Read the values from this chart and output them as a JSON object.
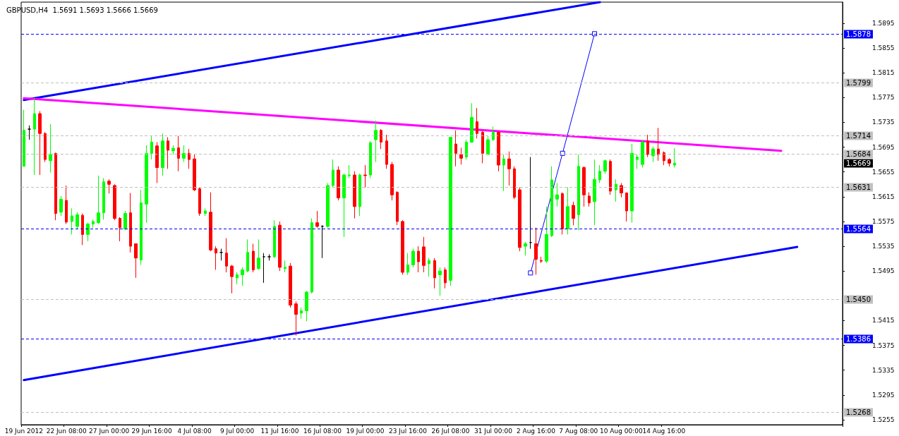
{
  "chart_data": {
    "type": "candlestick",
    "title": "GBPUSD,H4  1.5691 1.5693 1.5666 1.5669",
    "categories": [
      "19 Jun 2012",
      null,
      null,
      null,
      null,
      null,
      null,
      null,
      "22 Jun 08:00",
      null,
      null,
      null,
      null,
      null,
      null,
      null,
      "27 Jun 00:00",
      null,
      null,
      null,
      null,
      null,
      null,
      null,
      "29 Jun 16:00",
      null,
      null,
      null,
      null,
      null,
      null,
      null,
      "4 Jul 08:00",
      null,
      null,
      null,
      null,
      null,
      null,
      null,
      "9 Jul 00:00",
      null,
      null,
      null,
      null,
      null,
      null,
      null,
      "11 Jul 16:00",
      null,
      null,
      null,
      null,
      null,
      null,
      null,
      "16 Jul 08:00",
      null,
      null,
      null,
      null,
      null,
      null,
      null,
      "19 Jul 00:00",
      null,
      null,
      null,
      null,
      null,
      null,
      null,
      "23 Jul 16:00",
      null,
      null,
      null,
      null,
      null,
      null,
      null,
      "26 Jul 08:00",
      null,
      null,
      null,
      null,
      null,
      null,
      null,
      "31 Jul 00:00",
      null,
      null,
      null,
      null,
      null,
      null,
      null,
      "2 Aug 16:00",
      null,
      null,
      null,
      null,
      null,
      null,
      null,
      "7 Aug 08:00",
      null,
      null,
      null,
      null,
      null,
      null,
      null,
      "10 Aug 00:00",
      null,
      null,
      null,
      null,
      null,
      null,
      null,
      "14 Aug 16:00",
      null,
      null,
      null,
      null,
      null,
      null,
      null,
      null,
      null,
      null,
      null,
      null,
      null,
      null,
      null,
      null,
      null,
      null,
      null,
      null,
      null,
      null,
      null,
      null,
      null,
      null,
      null,
      null,
      null,
      null,
      null,
      null,
      null
    ],
    "ohlc": [
      [
        1.5664,
        1.5755,
        1.5664,
        1.5722
      ],
      [
        1.5724,
        1.573,
        1.5707,
        1.5724
      ],
      [
        1.5724,
        1.5774,
        1.565,
        1.5749
      ],
      [
        1.5749,
        1.5753,
        1.565,
        1.5717
      ],
      [
        1.5717,
        1.5719,
        1.5671,
        1.5675
      ],
      [
        1.5673,
        1.5732,
        1.5654,
        1.5683
      ],
      [
        1.5685,
        1.5686,
        1.5577,
        1.5588
      ],
      [
        1.559,
        1.5616,
        1.5584,
        1.5611
      ],
      [
        1.5609,
        1.5633,
        1.5571,
        1.5574
      ],
      [
        1.5575,
        1.5596,
        1.5554,
        1.5584
      ],
      [
        1.5567,
        1.559,
        1.5563,
        1.5586
      ],
      [
        1.5585,
        1.5588,
        1.5537,
        1.5554
      ],
      [
        1.5554,
        1.5573,
        1.5543,
        1.5571
      ],
      [
        1.5571,
        1.5578,
        1.5565,
        1.5575
      ],
      [
        1.5573,
        1.5649,
        1.5571,
        1.5589
      ],
      [
        1.5589,
        1.5645,
        1.5578,
        1.5639
      ],
      [
        1.564,
        1.5643,
        1.562,
        1.5635
      ],
      [
        1.5633,
        1.5635,
        1.5577,
        1.558
      ],
      [
        1.558,
        1.5582,
        1.5543,
        1.5565
      ],
      [
        1.5563,
        1.5592,
        1.5561,
        1.5588
      ],
      [
        1.5589,
        1.5621,
        1.5525,
        1.5535
      ],
      [
        1.5539,
        1.5539,
        1.5484,
        1.5516
      ],
      [
        1.5513,
        1.5626,
        1.5505,
        1.5605
      ],
      [
        1.5603,
        1.5698,
        1.5573,
        1.5685
      ],
      [
        1.5685,
        1.5713,
        1.5675,
        1.5703
      ],
      [
        1.5697,
        1.5703,
        1.5637,
        1.5662
      ],
      [
        1.5662,
        1.5717,
        1.5649,
        1.5705
      ],
      [
        1.5705,
        1.5711,
        1.566,
        1.569
      ],
      [
        1.5689,
        1.5698,
        1.5683,
        1.5693
      ],
      [
        1.5694,
        1.5713,
        1.5656,
        1.5677
      ],
      [
        1.5677,
        1.5698,
        1.5671,
        1.5685
      ],
      [
        1.5685,
        1.5692,
        1.566,
        1.5675
      ],
      [
        1.5676,
        1.5683,
        1.5624,
        1.5626
      ],
      [
        1.5628,
        1.563,
        1.5584,
        1.5588
      ],
      [
        1.5588,
        1.5596,
        1.5584,
        1.5592
      ],
      [
        1.559,
        1.5622,
        1.5527,
        1.5529
      ],
      [
        1.5531,
        1.5535,
        1.5497,
        1.5524
      ],
      [
        1.5525,
        1.5531,
        1.5512,
        1.5525
      ],
      [
        1.5524,
        1.5548,
        1.5493,
        1.5503
      ],
      [
        1.5503,
        1.5505,
        1.5459,
        1.5486
      ],
      [
        1.5484,
        1.5493,
        1.5474,
        1.5489
      ],
      [
        1.5489,
        1.5501,
        1.5471,
        1.5497
      ],
      [
        1.5495,
        1.5546,
        1.5493,
        1.5525
      ],
      [
        1.5527,
        1.5539,
        1.5493,
        1.5497
      ],
      [
        1.5499,
        1.5546,
        1.5497,
        1.5516
      ],
      [
        1.5518,
        1.5524,
        1.5476,
        1.5518
      ],
      [
        1.5518,
        1.5522,
        1.5512,
        1.5518
      ],
      [
        1.5518,
        1.5577,
        1.5516,
        1.5567
      ],
      [
        1.5569,
        1.5575,
        1.5495,
        1.5501
      ],
      [
        1.5499,
        1.5512,
        1.5493,
        1.5501
      ],
      [
        1.5503,
        1.5508,
        1.5436,
        1.544
      ],
      [
        1.5442,
        1.5446,
        1.5391,
        1.5425
      ],
      [
        1.5427,
        1.5436,
        1.5418,
        1.5431
      ],
      [
        1.5431,
        1.5463,
        1.5414,
        1.5461
      ],
      [
        1.5461,
        1.558,
        1.5459,
        1.5573
      ],
      [
        1.5573,
        1.5592,
        1.5565,
        1.5567
      ],
      [
        1.5567,
        1.5569,
        1.5516,
        1.5567
      ],
      [
        1.5567,
        1.5637,
        1.5565,
        1.5633
      ],
      [
        1.5633,
        1.5675,
        1.563,
        1.5658
      ],
      [
        1.5658,
        1.5664,
        1.5609,
        1.5613
      ],
      [
        1.5613,
        1.5652,
        1.555,
        1.565
      ],
      [
        1.5649,
        1.5666,
        1.5645,
        1.565
      ],
      [
        1.565,
        1.5656,
        1.558,
        1.5599
      ],
      [
        1.5599,
        1.5652,
        1.5584,
        1.565
      ],
      [
        1.565,
        1.5666,
        1.563,
        1.5649
      ],
      [
        1.565,
        1.5705,
        1.5645,
        1.5702
      ],
      [
        1.5707,
        1.5738,
        1.5671,
        1.5722
      ],
      [
        1.5722,
        1.5724,
        1.5692,
        1.5703
      ],
      [
        1.5705,
        1.5715,
        1.566,
        1.5667
      ],
      [
        1.5667,
        1.5671,
        1.5609,
        1.5618
      ],
      [
        1.5622,
        1.5624,
        1.5569,
        1.5575
      ],
      [
        1.5575,
        1.5577,
        1.5489,
        1.5493
      ],
      [
        1.5493,
        1.5524,
        1.5489,
        1.5505
      ],
      [
        1.5505,
        1.5531,
        1.5501,
        1.5527
      ],
      [
        1.5527,
        1.5535,
        1.5493,
        1.551
      ],
      [
        1.5534,
        1.555,
        1.5493,
        1.5504
      ],
      [
        1.5507,
        1.5516,
        1.5486,
        1.5512
      ],
      [
        1.5512,
        1.5516,
        1.5467,
        1.5484
      ],
      [
        1.5489,
        1.5501,
        1.5455,
        1.5495
      ],
      [
        1.5497,
        1.5501,
        1.5467,
        1.5476
      ],
      [
        1.548,
        1.5711,
        1.5471,
        1.5711
      ],
      [
        1.57,
        1.5722,
        1.5664,
        1.5685
      ],
      [
        1.5683,
        1.5694,
        1.5667,
        1.5677
      ],
      [
        1.5679,
        1.5707,
        1.5675,
        1.5703
      ],
      [
        1.5703,
        1.5766,
        1.5702,
        1.5743
      ],
      [
        1.5736,
        1.5758,
        1.5709,
        1.5717
      ],
      [
        1.5719,
        1.5721,
        1.5669,
        1.5685
      ],
      [
        1.5683,
        1.5713,
        1.5683,
        1.5707
      ],
      [
        1.5707,
        1.5728,
        1.5705,
        1.5719
      ],
      [
        1.5719,
        1.5721,
        1.5656,
        1.5666
      ],
      [
        1.5666,
        1.5683,
        1.5624,
        1.5676
      ],
      [
        1.5676,
        1.5688,
        1.5633,
        1.566
      ],
      [
        1.566,
        1.5664,
        1.5611,
        1.5614
      ],
      [
        1.5626,
        1.563,
        1.5527,
        1.5533
      ],
      [
        1.5535,
        1.5542,
        1.552,
        1.5539
      ],
      [
        1.5541,
        1.5679,
        1.5531,
        1.5541
      ],
      [
        1.5539,
        1.5565,
        1.5489,
        1.5514
      ],
      [
        1.5512,
        1.5518,
        1.5508,
        1.5511
      ],
      [
        1.5511,
        1.5599,
        1.5508,
        1.5554
      ],
      [
        1.5552,
        1.5664,
        1.555,
        1.5642
      ],
      [
        1.5611,
        1.5637,
        1.5599,
        1.5618
      ],
      [
        1.562,
        1.5622,
        1.5554,
        1.5563
      ],
      [
        1.5563,
        1.563,
        1.5554,
        1.5599
      ],
      [
        1.5601,
        1.5607,
        1.5569,
        1.558
      ],
      [
        1.5586,
        1.5683,
        1.5561,
        1.5664
      ],
      [
        1.5662,
        1.5664,
        1.5599,
        1.5618
      ],
      [
        1.5616,
        1.5622,
        1.5599,
        1.5605
      ],
      [
        1.5607,
        1.5675,
        1.5569,
        1.5643
      ],
      [
        1.5642,
        1.5666,
        1.5637,
        1.5656
      ],
      [
        1.5656,
        1.5675,
        1.5652,
        1.5673
      ],
      [
        1.5672,
        1.5675,
        1.5618,
        1.5624
      ],
      [
        1.5626,
        1.5643,
        1.5607,
        1.5635
      ],
      [
        1.5633,
        1.5637,
        1.5614,
        1.5621
      ],
      [
        1.5621,
        1.5622,
        1.5575,
        1.5592
      ],
      [
        1.5592,
        1.57,
        1.5573,
        1.5685
      ],
      [
        1.5675,
        1.5683,
        1.566,
        1.5679
      ],
      [
        1.5667,
        1.5707,
        1.5662,
        1.5703
      ],
      [
        1.5705,
        1.5715,
        1.5679,
        1.5683
      ],
      [
        1.5681,
        1.5696,
        1.5671,
        1.5692
      ],
      [
        1.5692,
        1.5726,
        1.5673,
        1.5683
      ],
      [
        1.5686,
        1.5688,
        1.5666,
        1.5673
      ],
      [
        1.5675,
        1.5677,
        1.5664,
        1.5669
      ],
      [
        1.5666,
        1.5693,
        1.5662,
        1.5669
      ],
      null,
      null,
      null,
      null,
      null,
      null,
      null,
      null,
      null,
      null,
      null,
      null,
      null,
      null,
      null,
      null,
      null,
      null,
      null,
      null,
      null,
      null,
      null,
      null,
      null,
      null,
      null,
      null,
      null,
      null,
      null
    ],
    "colors": [
      "#00ff00",
      "#000000",
      "#00ff00",
      "#ff0000",
      "#ff0000",
      "#00ff00",
      "#ff0000",
      "#00ff00",
      "#ff0000",
      "#00ff00",
      "#00ff00",
      "#ff0000",
      "#00ff00",
      "#00ff00",
      "#00ff00",
      "#00ff00",
      "#ff0000",
      "#ff0000",
      "#ff0000",
      "#00ff00",
      "#ff0000",
      "#ff0000",
      "#00ff00",
      "#00ff00",
      "#00ff00",
      "#ff0000",
      "#00ff00",
      "#ff0000",
      "#00ff00",
      "#ff0000",
      "#00ff00",
      "#ff0000",
      "#ff0000",
      "#ff0000",
      "#00ff00",
      "#ff0000",
      "#ff0000",
      "#000000",
      "#ff0000",
      "#ff0000",
      "#00ff00",
      "#00ff00",
      "#00ff00",
      "#ff0000",
      "#00ff00",
      "#000000",
      "#000000",
      "#00ff00",
      "#ff0000",
      "#00ff00",
      "#ff0000",
      "#ff0000",
      "#00ff00",
      "#00ff00",
      "#00ff00",
      "#ff0000",
      "#000000",
      "#00ff00",
      "#00ff00",
      "#ff0000",
      "#00ff00",
      "#00ff00",
      "#ff0000",
      "#00ff00",
      "#ff0000",
      "#00ff00",
      "#00ff00",
      "#ff0000",
      "#ff0000",
      "#ff0000",
      "#ff0000",
      "#ff0000",
      "#00ff00",
      "#00ff00",
      "#ff0000",
      "#ff0000",
      "#00ff00",
      "#ff0000",
      "#00ff00",
      "#ff0000",
      "#00ff00",
      "#ff0000",
      "#ff0000",
      "#00ff00",
      "#00ff00",
      "#ff0000",
      "#ff0000",
      "#00ff00",
      "#00ff00",
      "#ff0000",
      "#00ff00",
      "#ff0000",
      "#ff0000",
      "#ff0000",
      "#00ff00",
      "#000000",
      "#ff0000",
      "#ff0000",
      "#00ff00",
      "#00ff00",
      "#00ff00",
      "#ff0000",
      "#00ff00",
      "#ff0000",
      "#00ff00",
      "#ff0000",
      "#ff0000",
      "#00ff00",
      "#00ff00",
      "#00ff00",
      "#ff0000",
      "#00ff00",
      "#ff0000",
      "#ff0000",
      "#00ff00",
      "#00ff00",
      "#00ff00",
      "#ff0000",
      "#00ff00",
      "#ff0000",
      "#ff0000",
      "#ff0000",
      "#00ff00",
      null,
      null,
      null,
      null,
      null,
      null,
      null,
      null,
      null,
      null,
      null,
      null,
      null,
      null,
      null,
      null,
      null,
      null,
      null,
      null,
      null,
      null,
      null,
      null,
      null,
      null,
      null,
      null,
      null,
      null,
      null
    ],
    "series": [
      {
        "type": "line",
        "color": "#0000ff",
        "values": [
          1.5771,
          null,
          null,
          null,
          null,
          null,
          null,
          null,
          null,
          null,
          null,
          null,
          null,
          null,
          null,
          null,
          null,
          null,
          null,
          null,
          null,
          null,
          null,
          null,
          null,
          null,
          null,
          null,
          null,
          null,
          null,
          null,
          null,
          null,
          null,
          null,
          null,
          null,
          null,
          null,
          null,
          null,
          null,
          null,
          null,
          null,
          null,
          null,
          null,
          null,
          null,
          null,
          null,
          null,
          null,
          null,
          null,
          null,
          null,
          null,
          null,
          null,
          null,
          null,
          null,
          null,
          null,
          null,
          null,
          null,
          null,
          null,
          null,
          null,
          null,
          null,
          null,
          null,
          null,
          null,
          null,
          null,
          null,
          null,
          null,
          null,
          null,
          null,
          null,
          null,
          null,
          null,
          null,
          null,
          null,
          null,
          null,
          null,
          null,
          null,
          null,
          null,
          null,
          null,
          null,
          null,
          null,
          null,
          1.5929,
          null,
          null,
          null,
          null,
          null,
          null,
          null,
          null,
          null,
          null,
          null,
          null,
          null,
          null,
          null,
          null,
          null,
          null,
          null,
          null,
          null,
          null,
          null,
          null,
          null,
          null,
          null,
          null,
          null,
          null,
          null,
          null,
          null,
          null,
          null,
          null,
          null,
          null,
          null,
          null,
          null,
          null,
          null,
          null,
          null
        ]
      },
      {
        "type": "line",
        "color": "#0000ff",
        "values": [
          1.5319,
          null,
          null,
          null,
          null,
          null,
          null,
          null,
          null,
          null,
          null,
          null,
          null,
          null,
          null,
          null,
          null,
          null,
          null,
          null,
          null,
          null,
          null,
          null,
          null,
          null,
          null,
          null,
          null,
          null,
          null,
          null,
          null,
          null,
          null,
          null,
          null,
          null,
          null,
          null,
          null,
          null,
          null,
          null,
          null,
          null,
          null,
          null,
          null,
          null,
          null,
          null,
          null,
          null,
          null,
          null,
          null,
          null,
          null,
          null,
          null,
          null,
          null,
          null,
          null,
          null,
          null,
          null,
          null,
          null,
          null,
          null,
          null,
          null,
          null,
          null,
          null,
          null,
          null,
          null,
          null,
          null,
          null,
          null,
          null,
          null,
          null,
          null,
          null,
          null,
          null,
          null,
          null,
          null,
          null,
          null,
          null,
          null,
          null,
          null,
          null,
          null,
          null,
          null,
          null,
          null,
          null,
          null,
          null,
          null,
          null,
          null,
          null,
          null,
          null,
          null,
          null,
          null,
          null,
          null,
          null,
          null,
          null,
          null,
          null,
          null,
          null,
          null,
          null,
          null,
          null,
          null,
          null,
          null,
          null,
          null,
          null,
          null,
          null,
          null,
          null,
          null,
          null,
          null,
          null,
          1.5534,
          null,
          null,
          null,
          null,
          null,
          null,
          null,
          null
        ]
      },
      {
        "type": "line",
        "color": "#ff00ff",
        "values": [
          1.5774,
          null,
          null,
          null,
          null,
          null,
          null,
          null,
          null,
          null,
          null,
          null,
          null,
          null,
          null,
          null,
          null,
          null,
          null,
          null,
          null,
          null,
          null,
          null,
          null,
          null,
          null,
          null,
          null,
          null,
          null,
          null,
          null,
          null,
          null,
          null,
          null,
          null,
          null,
          null,
          null,
          null,
          null,
          null,
          null,
          null,
          null,
          null,
          null,
          null,
          null,
          null,
          null,
          null,
          null,
          null,
          null,
          null,
          null,
          null,
          null,
          null,
          null,
          null,
          null,
          null,
          null,
          null,
          null,
          null,
          null,
          null,
          null,
          null,
          null,
          null,
          null,
          null,
          null,
          null,
          null,
          null,
          null,
          null,
          null,
          null,
          null,
          null,
          null,
          null,
          null,
          null,
          null,
          null,
          null,
          null,
          null,
          null,
          null,
          null,
          null,
          null,
          null,
          null,
          null,
          null,
          null,
          null,
          null,
          null,
          null,
          null,
          null,
          null,
          null,
          null,
          null,
          null,
          null,
          null,
          null,
          null,
          null,
          null,
          null,
          null,
          null,
          null,
          null,
          null,
          null,
          null,
          null,
          null,
          null,
          null,
          null,
          null,
          null,
          null,
          null,
          null,
          1.5689,
          null,
          null,
          null,
          null,
          null,
          null,
          null,
          null,
          null,
          null,
          null
        ]
      },
      {
        "type": "line",
        "color": "#0000ff",
        "marker": "square",
        "values": [
          null,
          null,
          null,
          null,
          null,
          null,
          null,
          null,
          null,
          null,
          null,
          null,
          null,
          null,
          null,
          null,
          null,
          null,
          null,
          null,
          null,
          null,
          null,
          null,
          null,
          null,
          null,
          null,
          null,
          null,
          null,
          null,
          null,
          null,
          null,
          null,
          null,
          null,
          null,
          null,
          null,
          null,
          null,
          null,
          null,
          null,
          null,
          null,
          null,
          null,
          null,
          null,
          null,
          null,
          null,
          null,
          null,
          null,
          null,
          null,
          null,
          null,
          null,
          null,
          null,
          null,
          null,
          null,
          null,
          null,
          null,
          null,
          null,
          null,
          null,
          null,
          null,
          null,
          null,
          null,
          null,
          null,
          null,
          null,
          null,
          null,
          null,
          null,
          null,
          null,
          null,
          null,
          null,
          null,
          null,
          1.5492,
          null,
          null,
          null,
          null,
          null,
          1.5685,
          null,
          null,
          null,
          null,
          null,
          1.5878,
          null,
          null,
          null,
          null,
          null,
          null,
          null,
          null,
          null,
          null,
          null,
          null,
          null,
          null,
          null,
          null,
          null,
          null,
          null,
          null,
          null,
          null,
          null,
          null,
          null,
          null,
          null,
          null,
          null,
          null,
          null,
          null,
          null,
          null,
          null,
          null,
          null,
          null,
          null,
          null,
          null,
          null,
          null,
          null,
          null,
          null
        ]
      }
    ],
    "ylim": [
      1.5247,
      1.5929
    ],
    "yticks": [
      1.5255,
      1.5295,
      1.5335,
      1.5375,
      1.5415,
      1.5495,
      1.5535,
      1.5575,
      1.5615,
      1.5655,
      1.5695,
      1.5735,
      1.5775,
      1.5815,
      1.5855,
      1.5895
    ],
    "grid": false,
    "annotations": [
      "1.5669"
    ],
    "ref_lines": [
      {
        "axis": "y",
        "value": 1.5878,
        "label": "1.5878",
        "color": "#0000ff",
        "line_style": "dashed"
      },
      {
        "axis": "y",
        "value": 1.5799,
        "label": "1.5799",
        "color": "#c0c0c0",
        "line_style": "dashed"
      },
      {
        "axis": "y",
        "value": 1.5714,
        "label": "1.5714",
        "color": "#c0c0c0",
        "line_style": "dashed"
      },
      {
        "axis": "y",
        "value": 1.5684,
        "label": "1.5684",
        "color": "#c0c0c0",
        "line_style": "dashed"
      },
      {
        "axis": "y",
        "value": 1.5631,
        "label": "1.5631",
        "color": "#c0c0c0",
        "line_style": "dashed"
      },
      {
        "axis": "y",
        "value": 1.5564,
        "label": "1.5564",
        "color": "#0000ff",
        "line_style": "dashed"
      },
      {
        "axis": "y",
        "value": 1.545,
        "label": "1.5450",
        "color": "#c0c0c0",
        "line_style": "dashed"
      },
      {
        "axis": "y",
        "value": 1.5386,
        "label": "1.5386",
        "color": "#0000ff",
        "line_style": "dashed"
      },
      {
        "axis": "y",
        "value": 1.5268,
        "label": "1.5268",
        "color": "#c0c0c0",
        "line_style": "dashed"
      }
    ]
  }
}
